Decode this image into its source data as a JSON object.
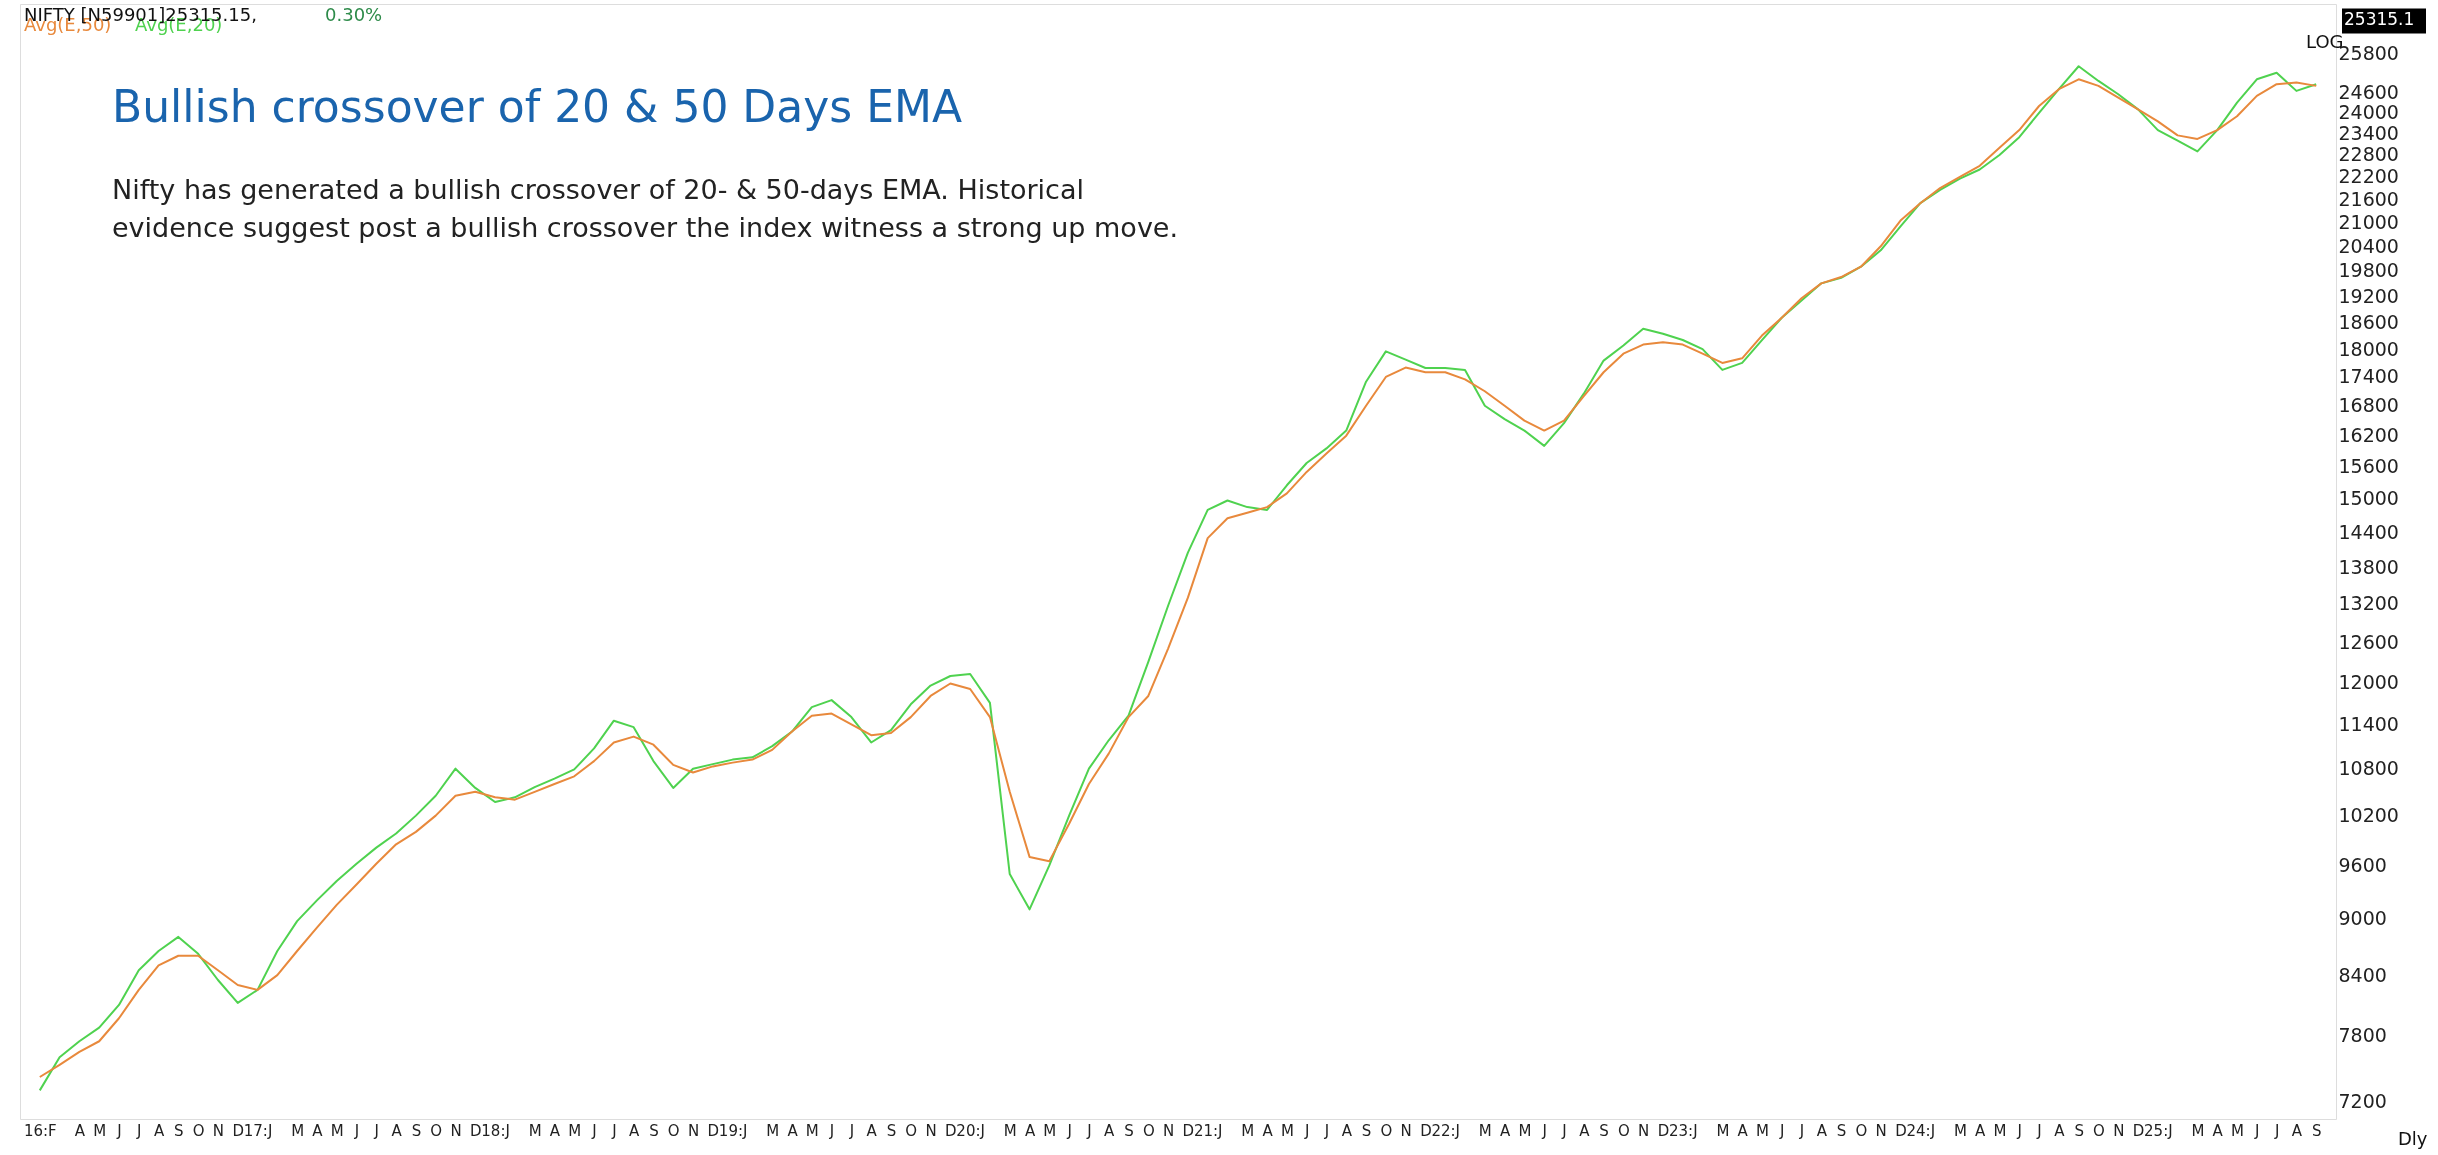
{
  "chart_data": {
    "type": "line",
    "title": "Bullish crossover of 20 & 50 Days EMA",
    "subtitle": "Nifty has generated a bullish crossover of 20- & 50-days EMA. Historical\nevidence suggest post a bullish crossover the index witness a strong up move.",
    "annotations": [
      "NIFTY [N59901]25315.15,",
      "0.30%",
      "LOG",
      "Dly",
      "25315.1"
    ],
    "legend": "top left",
    "log": true,
    "grid": false,
    "ylim": [
      7050,
      27400
    ],
    "yticks": [
      7200,
      7800,
      8400,
      9000,
      9600,
      10200,
      10800,
      11400,
      12000,
      12600,
      13200,
      13800,
      14400,
      15000,
      15600,
      16200,
      16800,
      17400,
      18000,
      18600,
      19200,
      19800,
      20400,
      21000,
      21600,
      22200,
      22800,
      23400,
      24000,
      24600,
      25800
    ],
    "categories": [
      "16:F",
      null,
      "A",
      "M",
      "J",
      "J",
      "A",
      "S",
      "O",
      "N",
      "D",
      "17:J",
      null,
      "M",
      "A",
      "M",
      "J",
      "J",
      "A",
      "S",
      "O",
      "N",
      "D",
      "18:J",
      null,
      "M",
      "A",
      "M",
      "J",
      "J",
      "A",
      "S",
      "O",
      "N",
      "D",
      "19:J",
      null,
      "M",
      "A",
      "M",
      "J",
      "J",
      "A",
      "S",
      "O",
      "N",
      "D",
      "20:J",
      null,
      "M",
      "A",
      "M",
      "J",
      "J",
      "A",
      "S",
      "O",
      "N",
      "D",
      "21:J",
      null,
      "M",
      "A",
      "M",
      "J",
      "J",
      "A",
      "S",
      "O",
      "N",
      "D",
      "22:J",
      null,
      "M",
      "A",
      "M",
      "J",
      "J",
      "A",
      "S",
      "O",
      "N",
      "D",
      "23:J",
      null,
      "M",
      "A",
      "M",
      "J",
      "J",
      "A",
      "S",
      "O",
      "N",
      "D",
      "24:J",
      null,
      "M",
      "A",
      "M",
      "J",
      "J",
      "A",
      "S",
      "O",
      "N",
      "D",
      "25:J",
      null,
      "M",
      "A",
      "M",
      "J",
      "J",
      "A",
      "S"
    ],
    "series": [
      {
        "name": "Avg(E,20)",
        "color": "#4fd24f",
        "values": [
          7300,
          7600,
          7750,
          7880,
          8100,
          8450,
          8650,
          8800,
          8620,
          8350,
          8120,
          8250,
          8650,
          8970,
          9200,
          9420,
          9620,
          9810,
          9980,
          10200,
          10450,
          10800,
          10550,
          10370,
          10430,
          10560,
          10670,
          10790,
          11070,
          11450,
          11360,
          10900,
          10550,
          10800,
          10860,
          10920,
          10950,
          11100,
          11300,
          11640,
          11740,
          11500,
          11150,
          11320,
          11680,
          11950,
          12090,
          12120,
          11700,
          9500,
          9100,
          9600,
          10200,
          10800,
          11180,
          11520,
          12300,
          13170,
          14050,
          14800,
          14970,
          14850,
          14800,
          15250,
          15670,
          15950,
          16300,
          17300,
          17950,
          17770,
          17590,
          17590,
          17550,
          16800,
          16530,
          16300,
          16000,
          16450,
          17050,
          17750,
          18080,
          18450,
          18340,
          18200,
          18000,
          17550,
          17700,
          18200,
          18700,
          19100,
          19500,
          19630,
          19900,
          20300,
          20900,
          21500,
          21850,
          22150,
          22400,
          22800,
          23300,
          24000,
          24700,
          25400,
          24950,
          24550,
          24100,
          23500,
          23200,
          22900,
          23500,
          24300,
          25000,
          25200,
          24650,
          24850
        ]
      },
      {
        "name": "Avg(E,50)",
        "color": "#e8893c",
        "values": [
          7420,
          7530,
          7650,
          7750,
          7970,
          8250,
          8500,
          8600,
          8600,
          8450,
          8300,
          8250,
          8400,
          8650,
          8900,
          9150,
          9380,
          9620,
          9850,
          10000,
          10200,
          10450,
          10500,
          10430,
          10400,
          10500,
          10600,
          10700,
          10900,
          11150,
          11230,
          11120,
          10850,
          10750,
          10830,
          10880,
          10920,
          11050,
          11300,
          11520,
          11550,
          11400,
          11250,
          11280,
          11500,
          11800,
          11980,
          11900,
          11500,
          10500,
          9700,
          9650,
          10100,
          10600,
          11000,
          11500,
          11800,
          12500,
          13300,
          14300,
          14650,
          14750,
          14850,
          15100,
          15500,
          15850,
          16200,
          16800,
          17400,
          17600,
          17500,
          17500,
          17350,
          17100,
          16800,
          16500,
          16300,
          16500,
          17000,
          17500,
          17900,
          18100,
          18150,
          18100,
          17900,
          17700,
          17800,
          18300,
          18700,
          19150,
          19500,
          19650,
          19900,
          20400,
          21050,
          21500,
          21900,
          22200,
          22500,
          23000,
          23500,
          24200,
          24700,
          25000,
          24800,
          24450,
          24100,
          23750,
          23350,
          23250,
          23500,
          23900,
          24500,
          24850,
          24900,
          24800
        ]
      }
    ]
  }
}
